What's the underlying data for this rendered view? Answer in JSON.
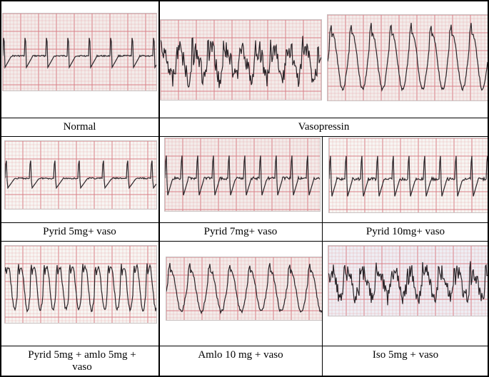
{
  "labels": {
    "normal": "Normal",
    "vasopressin": "Vasopressin",
    "pyrid5": "Pyrid 5mg+ vaso",
    "pyrid7": "Pyrid 7mg+ vaso",
    "pyrid10": "Pyrid 10mg+ vaso",
    "pyrid_amlo": "Pyrid 5mg + amlo 5mg + vaso",
    "amlo10": "Amlo 10 mg + vaso",
    "iso5": "Iso 5mg + vaso"
  },
  "colors": {
    "grid_line": "#e7a4a8",
    "grid_bold": "#d97e86",
    "trace": "#2a2428",
    "paper_pink": "#f3ecea",
    "paper_white": "#f7f6f3",
    "paper_blue": "#eeeef4",
    "border": "#000000"
  },
  "traces": [
    {
      "id": "ecg-normal",
      "paper": "paper_pink",
      "style": "normal"
    },
    {
      "id": "ecg-vaso-1",
      "paper": "paper_pink",
      "style": "noisy"
    },
    {
      "id": "ecg-vaso-2",
      "paper": "paper_pink",
      "style": "wide"
    },
    {
      "id": "ecg-pyrid5",
      "paper": "paper_white",
      "style": "sparse"
    },
    {
      "id": "ecg-pyrid7",
      "paper": "paper_pink",
      "style": "spiky"
    },
    {
      "id": "ecg-pyrid10",
      "paper": "paper_white",
      "style": "spiky"
    },
    {
      "id": "ecg-pyrid-amlo",
      "paper": "paper_white",
      "style": "dense"
    },
    {
      "id": "ecg-amlo10",
      "paper": "paper_pink",
      "style": "wide"
    },
    {
      "id": "ecg-iso5",
      "paper": "paper_blue",
      "style": "noisy"
    }
  ]
}
